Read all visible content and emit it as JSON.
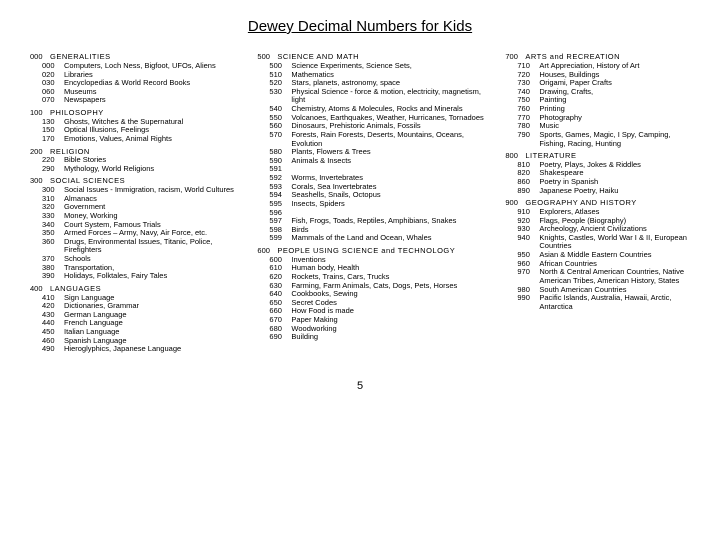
{
  "title": "Dewey Decimal Numbers for Kids",
  "pagenum": "5",
  "col1": [
    {
      "type": "heading",
      "num": "000",
      "label": "GENERALITIES",
      "items": [
        {
          "num": "000",
          "topic": "Computers, Loch Ness, Bigfoot, UFOs, Aliens"
        },
        {
          "num": "020",
          "topic": "Libraries"
        },
        {
          "num": "030",
          "topic": "Encyclopedias & World Record Books"
        },
        {
          "num": "060",
          "topic": "Museums"
        },
        {
          "num": "070",
          "topic": "Newspapers"
        }
      ]
    },
    {
      "type": "heading",
      "num": "100",
      "label": "PHILOSOPHY",
      "items": [
        {
          "num": "130",
          "topic": "Ghosts, Witches & the Supernatural"
        },
        {
          "num": "150",
          "topic": "Optical Illusions, Feelings"
        },
        {
          "num": "170",
          "topic": "Emotions, Values, Animal Rights"
        }
      ]
    },
    {
      "type": "heading",
      "num": "200",
      "label": "RELIGION",
      "items": [
        {
          "num": "220",
          "topic": "Bible Stories"
        },
        {
          "num": "290",
          "topic": "Mythology, World Religions"
        }
      ]
    },
    {
      "type": "heading",
      "num": "300",
      "label": "SOCIAL SCIENCES",
      "items": [
        {
          "num": "300",
          "topic": "Social Issues - Immigration, racism, World Cultures"
        },
        {
          "num": "310",
          "topic": "Almanacs"
        },
        {
          "num": "320",
          "topic": "Government"
        },
        {
          "num": "330",
          "topic": "Money, Working"
        },
        {
          "num": "340",
          "topic": "Court System, Famous Trials"
        },
        {
          "num": "350",
          "topic": "Armed Forces – Army, Navy, Air Force, etc."
        },
        {
          "num": "360",
          "topic": "Drugs, Environmental Issues, Titanic, Police, Firefighters"
        },
        {
          "num": "370",
          "topic": "Schools"
        },
        {
          "num": "380",
          "topic": "Transportation,"
        },
        {
          "num": "390",
          "topic": "Holidays, Folktales, Fairy Tales"
        }
      ]
    },
    {
      "type": "heading",
      "num": "400",
      "label": "LANGUAGES",
      "items": [
        {
          "num": "410",
          "topic": "Sign Language"
        },
        {
          "num": "420",
          "topic": "Dictionaries, Grammar"
        },
        {
          "num": "430",
          "topic": "German Language"
        },
        {
          "num": "440",
          "topic": "French Language"
        },
        {
          "num": "450",
          "topic": "Italian Language"
        },
        {
          "num": "460",
          "topic": "Spanish Language"
        },
        {
          "num": "490",
          "topic": "Hieroglyphics, Japanese Language"
        }
      ]
    }
  ],
  "col2": [
    {
      "type": "heading",
      "num": "500",
      "label": "SCIENCE AND MATH",
      "items": [
        {
          "num": "500",
          "topic": "Science Experiments, Science Sets,"
        },
        {
          "num": "510",
          "topic": "Mathematics"
        },
        {
          "num": "520",
          "topic": "Stars, planets, astronomy, space"
        },
        {
          "num": "530",
          "topic": "Physical Science - force & motion, electricity, magnetism, light"
        },
        {
          "num": "540",
          "topic": "Chemistry, Atoms & Molecules, Rocks and Minerals"
        },
        {
          "num": "550",
          "topic": "Volcanoes, Earthquakes, Weather, Hurricanes, Tornadoes"
        },
        {
          "num": "560",
          "topic": "Dinosaurs, Prehistoric Animals, Fossils"
        },
        {
          "num": "570",
          "topic": "Forests, Rain Forests, Deserts, Mountains, Oceans, Evolution"
        },
        {
          "num": "580",
          "topic": "Plants, Flowers & Trees"
        },
        {
          "num": "590",
          "topic": "Animals & Insects"
        },
        {
          "num": "591",
          "topic": ""
        },
        {
          "num": "592",
          "topic": "Worms, Invertebrates"
        },
        {
          "num": "593",
          "topic": "Corals, Sea Invertebrates"
        },
        {
          "num": "594",
          "topic": "Seashells, Snails, Octopus"
        },
        {
          "num": "595",
          "topic": "Insects, Spiders"
        },
        {
          "num": "596",
          "topic": ""
        },
        {
          "num": "597",
          "topic": "Fish, Frogs, Toads, Reptiles, Amphibians, Snakes"
        },
        {
          "num": "598",
          "topic": "Birds"
        },
        {
          "num": "599",
          "topic": "Mammals of the Land and Ocean, Whales"
        }
      ]
    },
    {
      "type": "heading",
      "num": "600",
      "label": "PEOPLE USING SCIENCE and TECHNOLOGY",
      "items": [
        {
          "num": "600",
          "topic": "Inventions"
        },
        {
          "num": "610",
          "topic": "Human body, Health"
        },
        {
          "num": "620",
          "topic": "Rockets, Trains, Cars, Trucks"
        },
        {
          "num": "630",
          "topic": "Farming, Farm Animals, Cats, Dogs, Pets, Horses"
        },
        {
          "num": "640",
          "topic": "Cookbooks, Sewing"
        },
        {
          "num": "650",
          "topic": "Secret Codes"
        },
        {
          "num": "660",
          "topic": "How Food is made"
        },
        {
          "num": "670",
          "topic": "Paper Making"
        },
        {
          "num": "680",
          "topic": "Woodworking"
        },
        {
          "num": "690",
          "topic": "Building"
        }
      ]
    }
  ],
  "col3": [
    {
      "type": "heading",
      "num": "700",
      "label": "ARTS and RECREATION",
      "items": [
        {
          "num": "710",
          "topic": "Art Appreciation, History of Art"
        },
        {
          "num": "720",
          "topic": "Houses, Buildings"
        },
        {
          "num": "730",
          "topic": "Origami, Paper Crafts"
        },
        {
          "num": "740",
          "topic": "Drawing, Crafts,"
        },
        {
          "num": "750",
          "topic": "Painting"
        },
        {
          "num": "760",
          "topic": "Printing"
        },
        {
          "num": "770",
          "topic": "Photography"
        },
        {
          "num": "780",
          "topic": "Music"
        },
        {
          "num": "790",
          "topic": "Sports, Games, Magic, I Spy, Camping, Fishing, Racing, Hunting"
        }
      ]
    },
    {
      "type": "heading",
      "num": "800",
      "label": "LITERATURE",
      "items": [
        {
          "num": "810",
          "topic": "Poetry, Plays, Jokes & Riddles"
        },
        {
          "num": "820",
          "topic": "Shakespeare"
        },
        {
          "num": "860",
          "topic": "Poetry in Spanish"
        },
        {
          "num": "890",
          "topic": "Japanese Poetry, Haiku"
        }
      ]
    },
    {
      "type": "heading",
      "num": "900",
      "label": "GEOGRAPHY AND HISTORY",
      "items": [
        {
          "num": "910",
          "topic": "Explorers, Atlases"
        },
        {
          "num": "920",
          "topic": "Flags, People (Biography)"
        },
        {
          "num": "930",
          "topic": "Archeology, Ancient Civilizations"
        },
        {
          "num": "940",
          "topic": "Knights, Castles, World War I & II, European Countries"
        },
        {
          "num": "950",
          "topic": "Asian & Middle Eastern Countries"
        },
        {
          "num": "960",
          "topic": "African Countries"
        },
        {
          "num": "970",
          "topic": "North & Central American Countries, Native American Tribes, American History, States"
        },
        {
          "num": "980",
          "topic": "South American Countries"
        },
        {
          "num": "990",
          "topic": "Pacific Islands, Australia, Hawaii, Arctic, Antarctica"
        }
      ]
    }
  ]
}
